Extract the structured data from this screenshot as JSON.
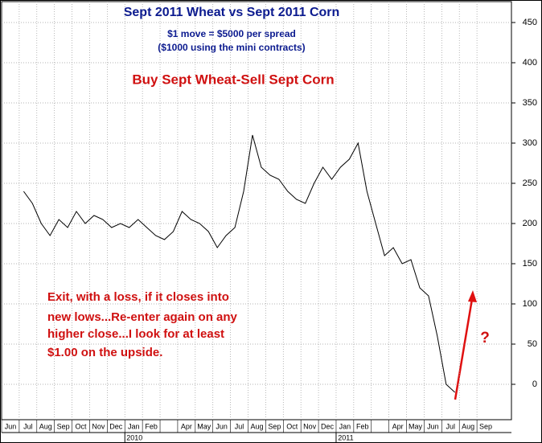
{
  "chart_data": {
    "type": "line",
    "title": "Sept 2011 Wheat vs Sept 2011 Corn",
    "subtitle": [
      "$1 move = $5000 per spread",
      "($1000 using the mini contracts)"
    ],
    "headline": "Buy Sept Wheat-Sell Sept Corn",
    "annotation": [
      "Exit, with a loss, if it closes into",
      "new lows...Re-enter again on any",
      "higher close...I look for at least",
      "$1.00 on the upside."
    ],
    "target_mark": "?",
    "categories": [
      "Jun",
      null,
      "Jul",
      null,
      "Aug",
      null,
      "Sep",
      null,
      "Oct",
      null,
      "Nov",
      null,
      "Dec",
      null,
      "Jan",
      null,
      "Feb",
      null,
      null,
      null,
      "Apr",
      null,
      "May",
      null,
      "Jun",
      null,
      "Jul",
      null,
      "Aug",
      null,
      "Sep",
      null,
      "Oct",
      null,
      "Nov",
      null,
      "Dec",
      null,
      "Jan",
      null,
      "Feb",
      null,
      null,
      null,
      "Apr",
      null,
      "May",
      null,
      "Jun",
      null,
      "Jul",
      null,
      "Aug",
      null,
      "Sep",
      null
    ],
    "year_labels": [
      "2010",
      "2011"
    ],
    "series": [
      {
        "color": "#000000",
        "values": [
          null,
          null,
          240,
          225,
          200,
          185,
          205,
          195,
          215,
          200,
          210,
          205,
          195,
          200,
          195,
          205,
          195,
          185,
          180,
          190,
          215,
          205,
          200,
          190,
          170,
          185,
          195,
          240,
          310,
          270,
          260,
          255,
          240,
          230,
          225,
          250,
          270,
          255,
          270,
          280,
          300,
          240,
          200,
          160,
          170,
          150,
          155,
          120,
          110,
          60,
          0,
          -10,
          null,
          null,
          null,
          null
        ]
      }
    ],
    "ylim": [
      -44,
      476
    ],
    "yticks": [
      0,
      50,
      100,
      150,
      200,
      250,
      300,
      350,
      400,
      450
    ],
    "grid": true
  }
}
